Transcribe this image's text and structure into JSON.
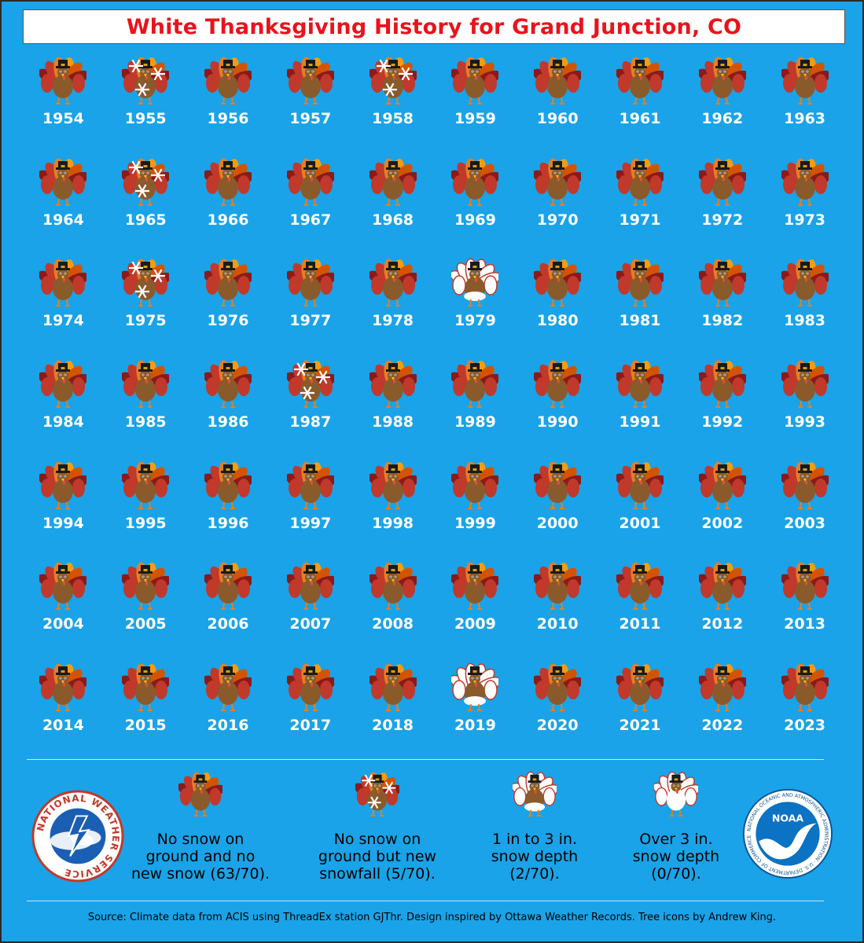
{
  "title": "White Thanksgiving History for Grand Junction, CO",
  "colors": {
    "background": "#1aa3e8",
    "title_text": "#e8141c",
    "year_text": "#ffffff"
  },
  "years": [
    {
      "year": "1954",
      "category": "none"
    },
    {
      "year": "1955",
      "category": "snowfall"
    },
    {
      "year": "1956",
      "category": "none"
    },
    {
      "year": "1957",
      "category": "none"
    },
    {
      "year": "1958",
      "category": "snowfall"
    },
    {
      "year": "1959",
      "category": "none"
    },
    {
      "year": "1960",
      "category": "none"
    },
    {
      "year": "1961",
      "category": "none"
    },
    {
      "year": "1962",
      "category": "none"
    },
    {
      "year": "1963",
      "category": "none"
    },
    {
      "year": "1964",
      "category": "none"
    },
    {
      "year": "1965",
      "category": "snowfall"
    },
    {
      "year": "1966",
      "category": "none"
    },
    {
      "year": "1967",
      "category": "none"
    },
    {
      "year": "1968",
      "category": "none"
    },
    {
      "year": "1969",
      "category": "none"
    },
    {
      "year": "1970",
      "category": "none"
    },
    {
      "year": "1971",
      "category": "none"
    },
    {
      "year": "1972",
      "category": "none"
    },
    {
      "year": "1973",
      "category": "none"
    },
    {
      "year": "1974",
      "category": "none"
    },
    {
      "year": "1975",
      "category": "snowfall"
    },
    {
      "year": "1976",
      "category": "none"
    },
    {
      "year": "1977",
      "category": "none"
    },
    {
      "year": "1978",
      "category": "none"
    },
    {
      "year": "1979",
      "category": "depth1to3"
    },
    {
      "year": "1980",
      "category": "none"
    },
    {
      "year": "1981",
      "category": "none"
    },
    {
      "year": "1982",
      "category": "none"
    },
    {
      "year": "1983",
      "category": "none"
    },
    {
      "year": "1984",
      "category": "none"
    },
    {
      "year": "1985",
      "category": "none"
    },
    {
      "year": "1986",
      "category": "none"
    },
    {
      "year": "1987",
      "category": "snowfall"
    },
    {
      "year": "1988",
      "category": "none"
    },
    {
      "year": "1989",
      "category": "none"
    },
    {
      "year": "1990",
      "category": "none"
    },
    {
      "year": "1991",
      "category": "none"
    },
    {
      "year": "1992",
      "category": "none"
    },
    {
      "year": "1993",
      "category": "none"
    },
    {
      "year": "1994",
      "category": "none"
    },
    {
      "year": "1995",
      "category": "none"
    },
    {
      "year": "1996",
      "category": "none"
    },
    {
      "year": "1997",
      "category": "none"
    },
    {
      "year": "1998",
      "category": "none"
    },
    {
      "year": "1999",
      "category": "none"
    },
    {
      "year": "2000",
      "category": "none"
    },
    {
      "year": "2001",
      "category": "none"
    },
    {
      "year": "2002",
      "category": "none"
    },
    {
      "year": "2003",
      "category": "none"
    },
    {
      "year": "2004",
      "category": "none"
    },
    {
      "year": "2005",
      "category": "none"
    },
    {
      "year": "2006",
      "category": "none"
    },
    {
      "year": "2007",
      "category": "none"
    },
    {
      "year": "2008",
      "category": "none"
    },
    {
      "year": "2009",
      "category": "none"
    },
    {
      "year": "2010",
      "category": "none"
    },
    {
      "year": "2011",
      "category": "none"
    },
    {
      "year": "2012",
      "category": "none"
    },
    {
      "year": "2013",
      "category": "none"
    },
    {
      "year": "2014",
      "category": "none"
    },
    {
      "year": "2015",
      "category": "none"
    },
    {
      "year": "2016",
      "category": "none"
    },
    {
      "year": "2017",
      "category": "none"
    },
    {
      "year": "2018",
      "category": "none"
    },
    {
      "year": "2019",
      "category": "depth1to3"
    },
    {
      "year": "2020",
      "category": "none"
    },
    {
      "year": "2021",
      "category": "none"
    },
    {
      "year": "2022",
      "category": "none"
    },
    {
      "year": "2023",
      "category": "none"
    }
  ],
  "legend": [
    {
      "category": "none",
      "text": "No snow on ground and no new snow (63/70)."
    },
    {
      "category": "snowfall",
      "text": "No snow on ground but new snowfall (5/70)."
    },
    {
      "category": "depth1to3",
      "text": "1 in to 3 in. snow depth (2/70)."
    },
    {
      "category": "over3",
      "text": "Over 3 in. snow depth (0/70)."
    }
  ],
  "logos": {
    "nws_text": "NATIONAL WEATHER SERVICE",
    "noaa_badge": "NOAA",
    "noaa_ring_text": "NATIONAL OCEANIC AND ATMOSPHERIC ADMINISTRATION · U.S. DEPARTMENT OF COMMERCE"
  },
  "source": "Source: Climate data from ACIS using ThreadEx station GJThr. Design inspired by Ottawa Weather Records. Tree icons by Andrew King."
}
